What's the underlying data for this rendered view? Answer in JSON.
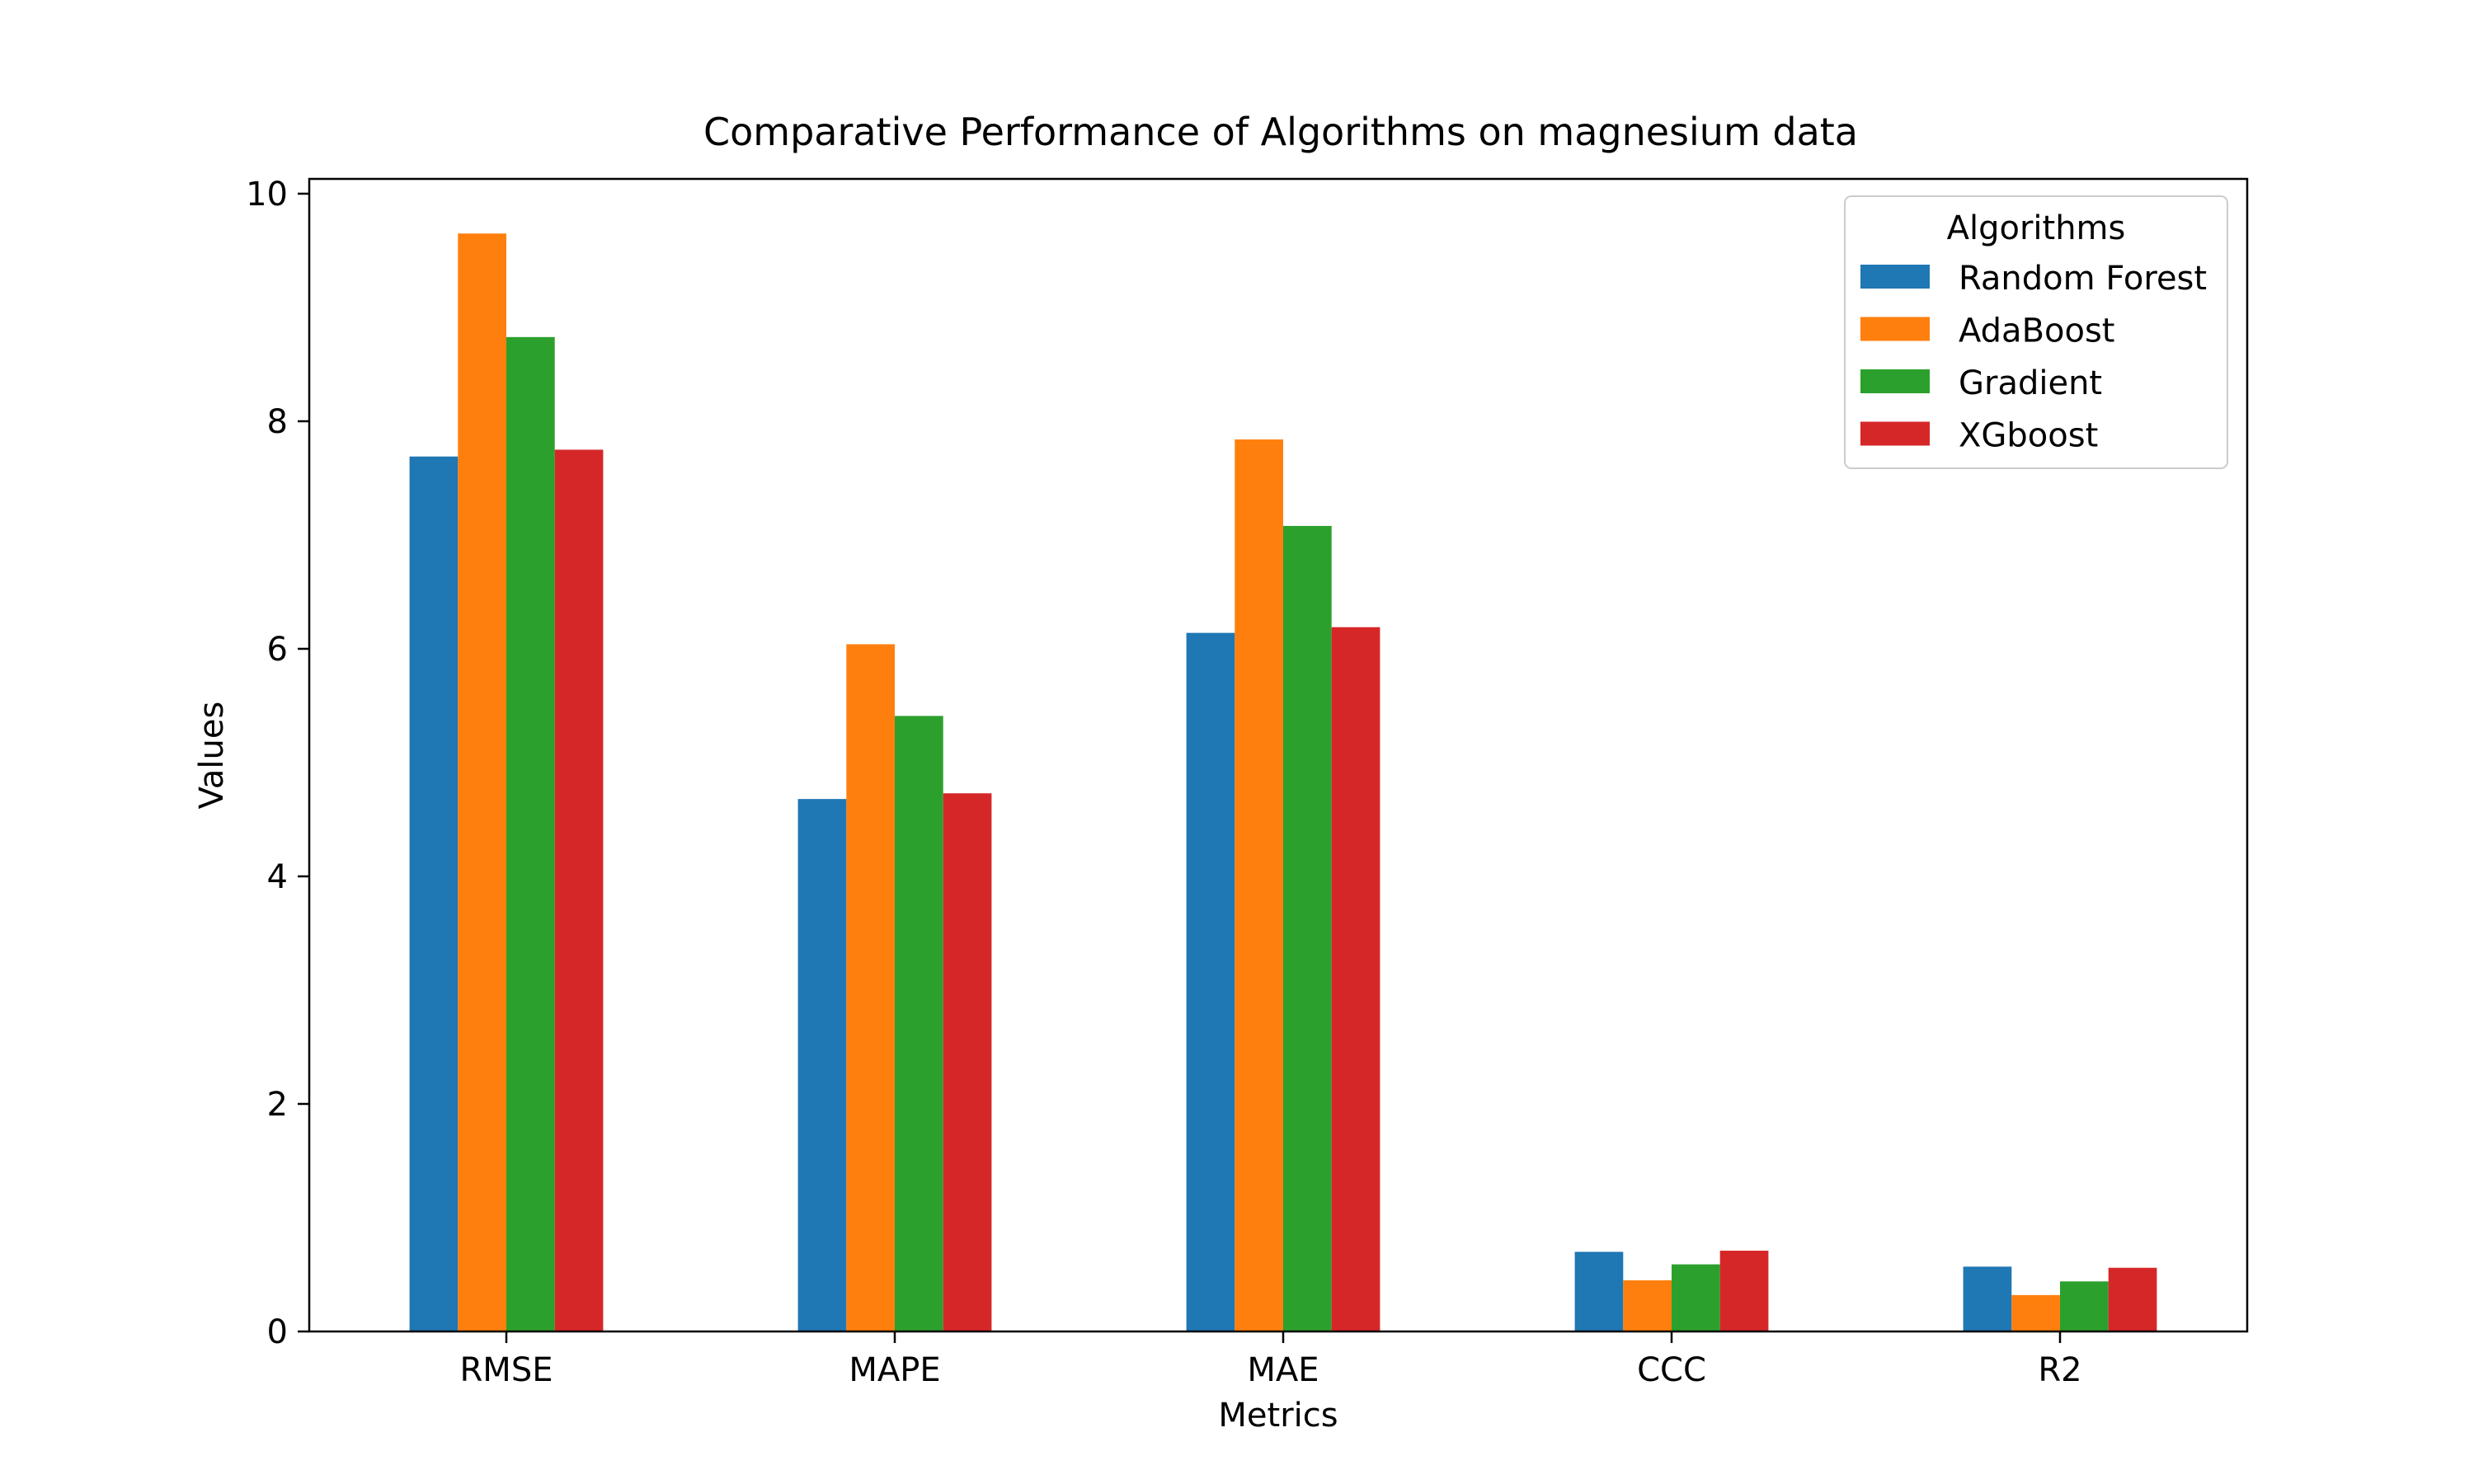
{
  "chart_data": {
    "type": "bar",
    "title": "Comparative Performance of Algorithms on magnesium data",
    "xlabel": "Metrics",
    "ylabel": "Values",
    "categories": [
      "RMSE",
      "MAPE",
      "MAE",
      "CCC",
      "R2"
    ],
    "series": [
      {
        "name": "Random Forest",
        "color": "#1f77b4",
        "values": [
          7.69,
          4.68,
          6.14,
          0.7,
          0.57
        ]
      },
      {
        "name": "AdaBoost",
        "color": "#ff7f0e",
        "values": [
          9.65,
          6.04,
          7.84,
          0.45,
          0.32
        ]
      },
      {
        "name": "Gradient",
        "color": "#2ca02c",
        "values": [
          8.74,
          5.41,
          7.08,
          0.59,
          0.44
        ]
      },
      {
        "name": "XGboost",
        "color": "#d62728",
        "values": [
          7.75,
          4.73,
          6.19,
          0.71,
          0.56
        ]
      }
    ],
    "ylim": [
      0,
      10.13
    ],
    "yticks": [
      0,
      2,
      4,
      6,
      8,
      10
    ],
    "ytick_labels": [
      "0",
      "2",
      "4",
      "6",
      "8",
      "10"
    ],
    "legend": {
      "title": "Algorithms",
      "placement": "top-right"
    },
    "grid": false
  }
}
